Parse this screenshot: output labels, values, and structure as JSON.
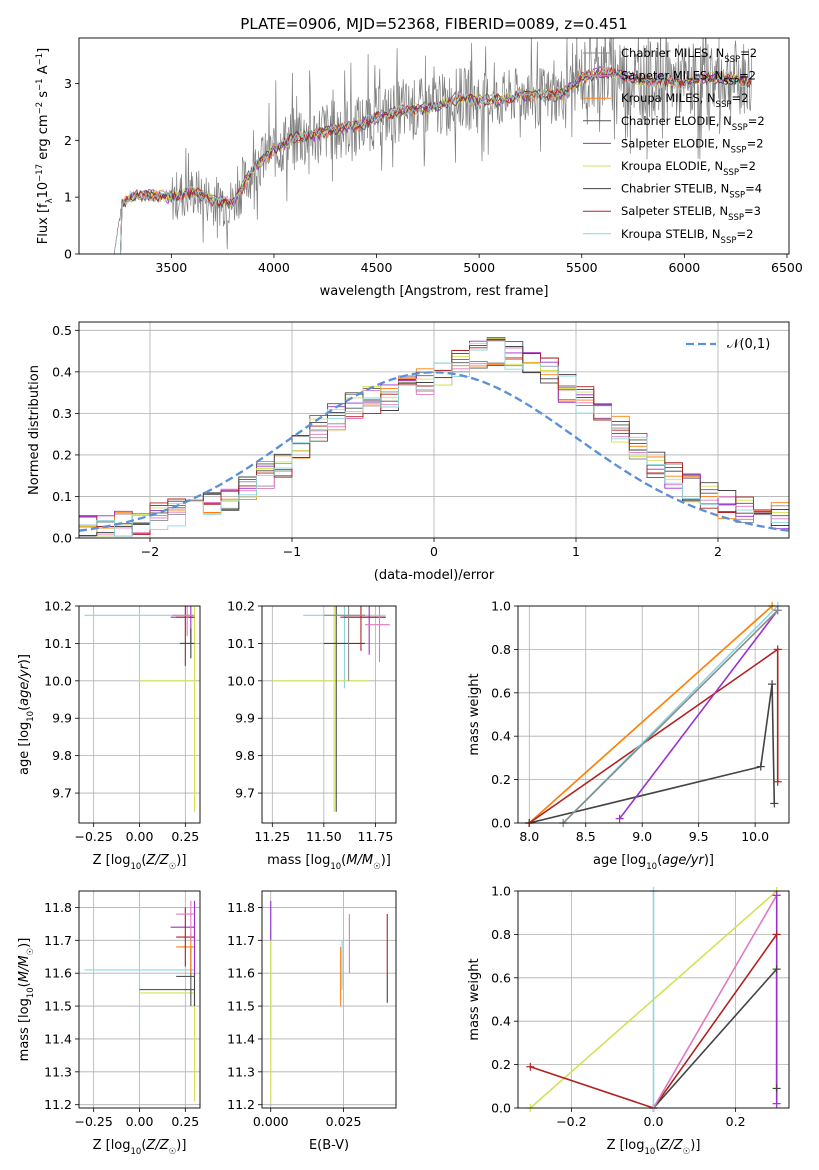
{
  "figure": {
    "title": "PLATE=0906, MJD=52368, FIBERID=0089, z=0.451"
  },
  "chart_data": [
    {
      "type": "line",
      "name": "spectrum",
      "xlabel": "wavelength [Angstrom, rest frame]",
      "ylabel": "Flux [f_λ 10^-17 erg cm^-2 s^-1 A^-1]",
      "xlim": [
        3050,
        6510
      ],
      "ylim": [
        0,
        3.8
      ],
      "xticks": [
        3500,
        4000,
        4500,
        5000,
        5500,
        6000,
        6500
      ],
      "yticks": [
        0,
        1,
        2,
        3
      ],
      "grid": false,
      "legend_position": "top-right",
      "series": [
        {
          "name": "Chabrier MILES, N_SSP=2",
          "color": "#8c8c8c"
        },
        {
          "name": "Salpeter MILES, N_SSP=2",
          "color": "#e377c2"
        },
        {
          "name": "Kroupa MILES, N_SSP=2",
          "color": "#ff7f0e"
        },
        {
          "name": "Chabrier ELODIE, N_SSP=2",
          "color": "#555555"
        },
        {
          "name": "Salpeter ELODIE, N_SSP=2",
          "color": "#9932cc"
        },
        {
          "name": "Kroupa ELODIE, N_SSP=2",
          "color": "#d4e157"
        },
        {
          "name": "Chabrier STELIB, N_SSP=4",
          "color": "#444444"
        },
        {
          "name": "Salpeter STELIB, N_SSP=3",
          "color": "#b22222"
        },
        {
          "name": "Kroupa STELIB, N_SSP=2",
          "color": "#8ed7dc"
        }
      ],
      "model_curve": {
        "x": [
          3220,
          3260,
          3300,
          3400,
          3500,
          3600,
          3700,
          3800,
          3900,
          4000,
          4100,
          4200,
          4300,
          4400,
          4500,
          4600,
          4700,
          4800,
          4900,
          5000,
          5100,
          5200,
          5300,
          5400,
          5500,
          5600,
          5700,
          5800,
          5900,
          6000,
          6100,
          6200,
          6300
        ],
        "y": [
          0.0,
          0.9,
          1.0,
          1.05,
          1.0,
          1.1,
          0.95,
          0.9,
          1.5,
          1.85,
          2.05,
          2.1,
          2.2,
          2.25,
          2.4,
          2.5,
          2.55,
          2.6,
          2.75,
          2.7,
          2.7,
          2.8,
          2.8,
          2.8,
          3.1,
          3.2,
          3.15,
          3.05,
          3.05,
          3.0,
          3.1,
          3.1,
          3.05
        ]
      }
    },
    {
      "type": "line",
      "name": "residual-histogram",
      "xlabel": "(data-model)/error",
      "ylabel": "Normed distribution",
      "xlim": [
        -2.5,
        2.5
      ],
      "ylim": [
        0,
        0.52
      ],
      "xticks": [
        -2,
        -1,
        0,
        1,
        2
      ],
      "yticks": [
        0.0,
        0.1,
        0.2,
        0.3,
        0.4,
        0.5
      ],
      "grid": true,
      "legend_position": "top-right",
      "legend": [
        "𝒩(0,1)"
      ],
      "gaussian": {
        "mean": 0,
        "sigma": 1,
        "color": "#5b8fd9"
      },
      "histogram_base": [
        0.02,
        0.02,
        0.03,
        0.04,
        0.05,
        0.06,
        0.07,
        0.08,
        0.1,
        0.12,
        0.15,
        0.18,
        0.22,
        0.26,
        0.29,
        0.32,
        0.33,
        0.34,
        0.36,
        0.38,
        0.4,
        0.42,
        0.44,
        0.45,
        0.44,
        0.42,
        0.4,
        0.36,
        0.33,
        0.3,
        0.26,
        0.22,
        0.18,
        0.15,
        0.12,
        0.1,
        0.08,
        0.07,
        0.06,
        0.05
      ],
      "series_colors": [
        "#8c8c8c",
        "#e377c2",
        "#ff7f0e",
        "#555555",
        "#9932cc",
        "#d4e157",
        "#444444",
        "#b22222",
        "#8ed7dc"
      ]
    },
    {
      "type": "scatter",
      "name": "age-vs-Z",
      "xlabel": "Z [log10(Z/Z☉)]",
      "ylabel": "age [log10(age/yr)]",
      "xlim": [
        -0.33,
        0.33
      ],
      "ylim": [
        9.62,
        10.2
      ],
      "xticks": [
        -0.25,
        0.0,
        0.25
      ],
      "xticklabels": [
        "−0.25",
        "0.00",
        "0.25"
      ],
      "yticks": [
        9.7,
        9.8,
        9.9,
        10.0,
        10.1,
        10.2
      ],
      "grid": true
    },
    {
      "type": "scatter",
      "name": "age-vs-mass",
      "xlabel": "mass [log10(M/M☉)]",
      "xlim": [
        11.2,
        11.85
      ],
      "ylim": [
        9.62,
        10.2
      ],
      "xticks": [
        11.25,
        11.5,
        11.75
      ],
      "yticks": [
        9.7,
        9.8,
        9.9,
        10.0,
        10.1,
        10.2
      ],
      "grid": true
    },
    {
      "type": "line",
      "name": "massweight-vs-age",
      "xlabel": "age [log10(age/yr)]",
      "ylabel": "mass weight",
      "xlim": [
        7.9,
        10.3
      ],
      "ylim": [
        0,
        1
      ],
      "xticks": [
        8.0,
        8.5,
        9.0,
        9.5,
        10.0
      ],
      "yticks": [
        0.0,
        0.2,
        0.4,
        0.6,
        0.8,
        1.0
      ],
      "grid": true,
      "series": [
        {
          "color": "#d4e157",
          "x": [
            8.0,
            10.15
          ],
          "y": [
            0.0,
            1.0
          ]
        },
        {
          "color": "#ff7f0e",
          "x": [
            8.0,
            10.15
          ],
          "y": [
            0.0,
            1.0
          ]
        },
        {
          "color": "#444444",
          "x": [
            8.0,
            10.05,
            10.15,
            10.17
          ],
          "y": [
            0.0,
            0.26,
            0.64,
            0.09
          ]
        },
        {
          "color": "#b22222",
          "x": [
            8.0,
            10.2,
            10.2
          ],
          "y": [
            0.0,
            0.8,
            0.19
          ]
        },
        {
          "color": "#8ed7dc",
          "x": [
            8.3,
            10.2
          ],
          "y": [
            0.0,
            1.0
          ]
        },
        {
          "color": "#9932cc",
          "x": [
            8.8,
            10.2
          ],
          "y": [
            0.02,
            0.98
          ]
        },
        {
          "color": "#8c8c8c",
          "x": [
            8.3,
            10.2
          ],
          "y": [
            0.0,
            0.98
          ]
        }
      ]
    },
    {
      "type": "scatter",
      "name": "mass-vs-Z",
      "xlabel": "Z [log10(Z/Z☉)]",
      "ylabel": "mass [log10(M/M☉)]",
      "xlim": [
        -0.33,
        0.33
      ],
      "ylim": [
        11.19,
        11.85
      ],
      "xticks": [
        -0.25,
        0.0,
        0.25
      ],
      "xticklabels": [
        "−0.25",
        "0.00",
        "0.25"
      ],
      "yticks": [
        11.2,
        11.3,
        11.4,
        11.5,
        11.6,
        11.7,
        11.8
      ],
      "grid": true
    },
    {
      "type": "scatter",
      "name": "mass-vs-EBV",
      "xlabel": "E(B-V)",
      "xlim": [
        -0.003,
        0.043
      ],
      "ylim": [
        11.19,
        11.85
      ],
      "xticks": [
        0.0,
        0.025
      ],
      "xticklabels": [
        "0.000",
        "0.025"
      ],
      "yticks": [
        11.2,
        11.3,
        11.4,
        11.5,
        11.6,
        11.7,
        11.8
      ],
      "grid": true
    },
    {
      "type": "line",
      "name": "massweight-vs-Z",
      "xlabel": "Z [log10(Z/Z☉)]",
      "ylabel": "mass weight",
      "xlim": [
        -0.33,
        0.33
      ],
      "ylim": [
        0,
        1
      ],
      "xticks": [
        -0.2,
        0.0,
        0.2
      ],
      "xticklabels": [
        "−0.2",
        "0.0",
        "0.2"
      ],
      "yticks": [
        0.0,
        0.2,
        0.4,
        0.6,
        0.8,
        1.0
      ],
      "grid": true,
      "series": [
        {
          "color": "#d4e157",
          "x": [
            -0.3,
            0.3
          ],
          "y": [
            0.0,
            1.0
          ]
        },
        {
          "color": "#b22222",
          "x": [
            -0.3,
            0.0,
            0.3
          ],
          "y": [
            0.19,
            0.0,
            0.8
          ]
        },
        {
          "color": "#444444",
          "x": [
            0.0,
            0.3,
            0.3
          ],
          "y": [
            0.0,
            0.64,
            0.09
          ]
        },
        {
          "color": "#e377c2",
          "x": [
            0.0,
            0.3
          ],
          "y": [
            0.0,
            0.98
          ]
        },
        {
          "color": "#9932cc",
          "x": [
            0.3,
            0.3
          ],
          "y": [
            0.02,
            0.98
          ]
        },
        {
          "color": "#8ed7dc",
          "x": [
            0.0,
            0.0
          ],
          "y": [
            0.0,
            1.0
          ]
        }
      ]
    }
  ]
}
